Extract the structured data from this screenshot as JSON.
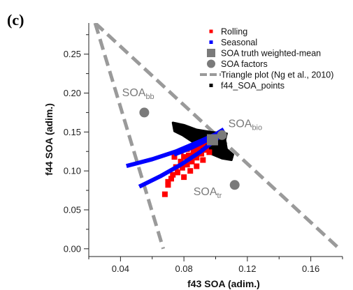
{
  "panel_label": "(c)",
  "chart_data": {
    "type": "scatter",
    "xlabel": "f43 SOA (adim.)",
    "ylabel": "f44 SOA (adim.)",
    "xlim": [
      0.02,
      0.18
    ],
    "ylim": [
      -0.01,
      0.29
    ],
    "xticks": [
      "0.04",
      "0.08",
      "0.12",
      "0.16"
    ],
    "xtick_values": [
      0.04,
      0.08,
      0.12,
      0.16
    ],
    "yticks": [
      "0.00",
      "0.05",
      "0.10",
      "0.15",
      "0.20",
      "0.25"
    ],
    "ytick_values": [
      0.0,
      0.05,
      0.1,
      0.15,
      0.2,
      0.25
    ],
    "legend_position": "top-right",
    "series": [
      {
        "name": "Rolling",
        "kind": "points",
        "color": "#ff0000",
        "points": [
          [
            0.068,
            0.07
          ],
          [
            0.07,
            0.082
          ],
          [
            0.073,
            0.095
          ],
          [
            0.075,
            0.105
          ],
          [
            0.078,
            0.112
          ],
          [
            0.08,
            0.118
          ],
          [
            0.083,
            0.12
          ],
          [
            0.086,
            0.123
          ],
          [
            0.089,
            0.128
          ],
          [
            0.092,
            0.133
          ],
          [
            0.095,
            0.138
          ],
          [
            0.098,
            0.142
          ],
          [
            0.076,
            0.098
          ],
          [
            0.079,
            0.104
          ],
          [
            0.082,
            0.108
          ],
          [
            0.085,
            0.112
          ],
          [
            0.088,
            0.117
          ],
          [
            0.091,
            0.122
          ],
          [
            0.094,
            0.127
          ],
          [
            0.074,
            0.118
          ],
          [
            0.078,
            0.125
          ],
          [
            0.082,
            0.128
          ],
          [
            0.086,
            0.13
          ],
          [
            0.09,
            0.133
          ],
          [
            0.07,
            0.086
          ],
          [
            0.072,
            0.09
          ],
          [
            0.08,
            0.092
          ],
          [
            0.084,
            0.1
          ],
          [
            0.088,
            0.106
          ],
          [
            0.092,
            0.114
          ],
          [
            0.096,
            0.124
          ]
        ]
      },
      {
        "name": "Seasonal",
        "kind": "lines",
        "color": "#0000ff",
        "lines": [
          [
            [
              0.045,
              0.107
            ],
            [
              0.06,
              0.115
            ],
            [
              0.075,
              0.125
            ],
            [
              0.09,
              0.138
            ],
            [
              0.1,
              0.147
            ],
            [
              0.104,
              0.152
            ]
          ],
          [
            [
              0.053,
              0.081
            ],
            [
              0.065,
              0.093
            ],
            [
              0.078,
              0.108
            ],
            [
              0.09,
              0.124
            ],
            [
              0.1,
              0.14
            ],
            [
              0.104,
              0.147
            ]
          ],
          [
            [
              0.075,
              0.122
            ],
            [
              0.085,
              0.13
            ],
            [
              0.095,
              0.14
            ],
            [
              0.103,
              0.148
            ]
          ]
        ]
      },
      {
        "name": "SOA truth weighted-mean",
        "kind": "square",
        "color": "#7a7a7a",
        "points": [
          [
            0.098,
            0.14
          ]
        ]
      },
      {
        "name": "SOA factors",
        "kind": "circle",
        "color": "#7a7a7a",
        "points": [
          [
            0.055,
            0.175
          ],
          [
            0.104,
            0.146
          ],
          [
            0.112,
            0.082
          ]
        ]
      },
      {
        "name": "Triangle plot (Ng et al., 2010)",
        "kind": "dashed-line",
        "color": "#9a9a9a",
        "lines": [
          [
            [
              0.024,
              0.29
            ],
            [
              0.067,
              0.0
            ]
          ],
          [
            [
              0.024,
              0.29
            ],
            [
              0.178,
              0.0
            ]
          ]
        ]
      },
      {
        "name": "f44_SOA_points",
        "kind": "polygon",
        "color": "#000000",
        "polygon": [
          [
            0.073,
            0.162
          ],
          [
            0.08,
            0.159
          ],
          [
            0.088,
            0.153
          ],
          [
            0.097,
            0.15
          ],
          [
            0.107,
            0.148
          ],
          [
            0.106,
            0.14
          ],
          [
            0.107,
            0.128
          ],
          [
            0.111,
            0.121
          ],
          [
            0.11,
            0.114
          ],
          [
            0.104,
            0.116
          ],
          [
            0.097,
            0.122
          ],
          [
            0.09,
            0.131
          ],
          [
            0.085,
            0.138
          ],
          [
            0.079,
            0.146
          ],
          [
            0.074,
            0.151
          ]
        ]
      }
    ],
    "annotations": [
      {
        "base": "SOA",
        "sub": "bb",
        "x": 0.041,
        "y": 0.196
      },
      {
        "base": "SOA",
        "sub": "bio",
        "x": 0.108,
        "y": 0.156
      },
      {
        "base": "SOA",
        "sub": "tr",
        "x": 0.086,
        "y": 0.069
      }
    ]
  }
}
